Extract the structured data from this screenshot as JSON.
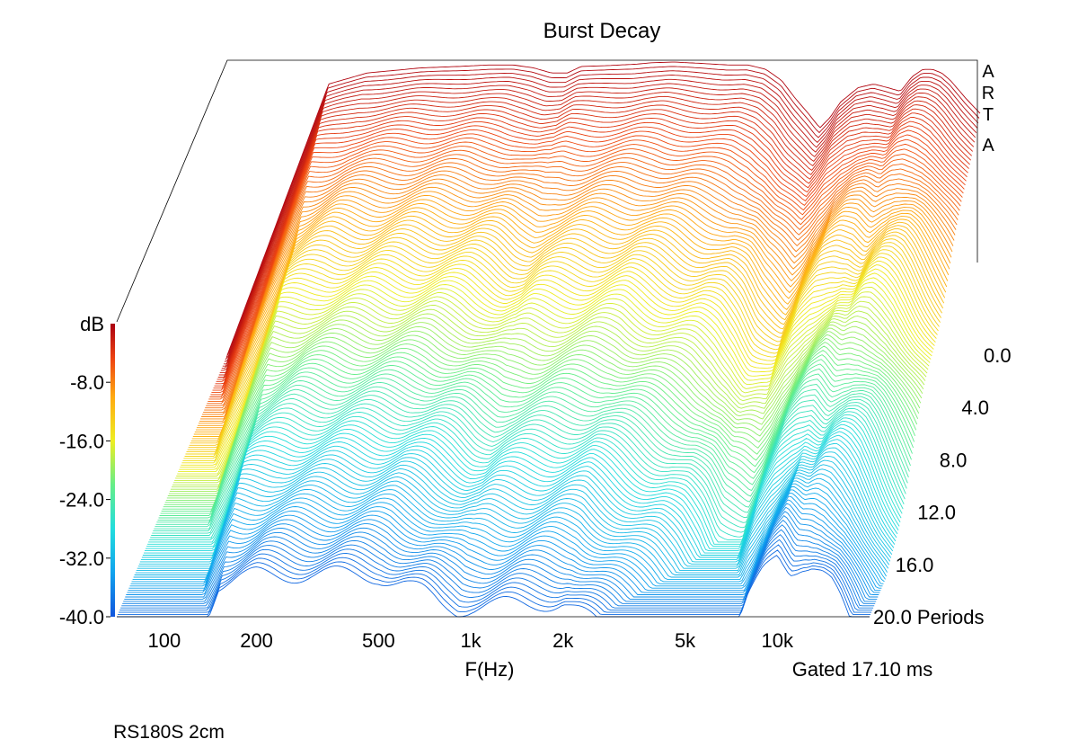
{
  "chart_data": {
    "type": "waterfall",
    "title": "Burst Decay",
    "watermark": "ARTA",
    "xlabel": "F(Hz)",
    "zlabel": "dB",
    "x_scale": "log",
    "x_ticks": [
      "100",
      "200",
      "500",
      "1k",
      "2k",
      "5k",
      "10k"
    ],
    "x_tick_values": [
      100,
      200,
      500,
      1000,
      2000,
      5000,
      10000
    ],
    "x_range_hz": [
      70,
      20000
    ],
    "z_ticks": [
      "-8.0",
      "-16.0",
      "-24.0",
      "-32.0",
      "-40.0"
    ],
    "z_tick_values": [
      -8,
      -16,
      -24,
      -32,
      -40
    ],
    "z_range_db": [
      -40,
      0
    ],
    "depth_ticks": [
      "0.0",
      "4.0",
      "8.0",
      "12.0",
      "16.0",
      "20.0 Periods"
    ],
    "depth_tick_values": [
      0,
      4,
      8,
      12,
      16,
      20
    ],
    "depth_unit": "Periods",
    "gate_note": "Gated 17.10 ms",
    "footer": "RS180S 2cm",
    "colormap": [
      "#1155dd",
      "#11a3ee",
      "#22dddd",
      "#66ee88",
      "#eeee22",
      "#ffaa11",
      "#ee4411",
      "#aa0011"
    ],
    "slices": 120,
    "response_db": {
      "hz": [
        70,
        150,
        200,
        300,
        400,
        500,
        600,
        700,
        800,
        900,
        1000,
        1200,
        1500,
        1700,
        2000,
        2500,
        3000,
        3500,
        4000,
        4500,
        5000,
        5500,
        6000,
        6500,
        7000,
        8000,
        9000,
        10000,
        11000,
        12000,
        13000,
        14000,
        15000,
        16000,
        18000,
        20000
      ],
      "db": [
        -40,
        -3,
        -1.5,
        -0.8,
        -0.6,
        -0.4,
        -0.4,
        -0.8,
        -1.5,
        -1.5,
        -0.6,
        -0.5,
        -0.3,
        -0.1,
        0,
        -0.2,
        -0.4,
        -0.4,
        -1.0,
        -2.5,
        -5.0,
        -7.0,
        -9.0,
        -7.5,
        -5.5,
        -3.5,
        -3.0,
        -3.5,
        -4.0,
        -2.0,
        -1.0,
        -1.0,
        -1.5,
        -2.5,
        -5.0,
        -7.0
      ]
    },
    "decay_db_per_period": [
      {
        "hz": 100,
        "rate": 1.6
      },
      {
        "hz": 500,
        "rate": 1.7
      },
      {
        "hz": 1000,
        "rate": 1.9
      },
      {
        "hz": 2000,
        "rate": 1.9
      },
      {
        "hz": 5000,
        "rate": 2.4
      },
      {
        "hz": 10000,
        "rate": 1.4
      },
      {
        "hz": 15000,
        "rate": 1.7
      },
      {
        "hz": 20000,
        "rate": 2.0
      }
    ]
  }
}
